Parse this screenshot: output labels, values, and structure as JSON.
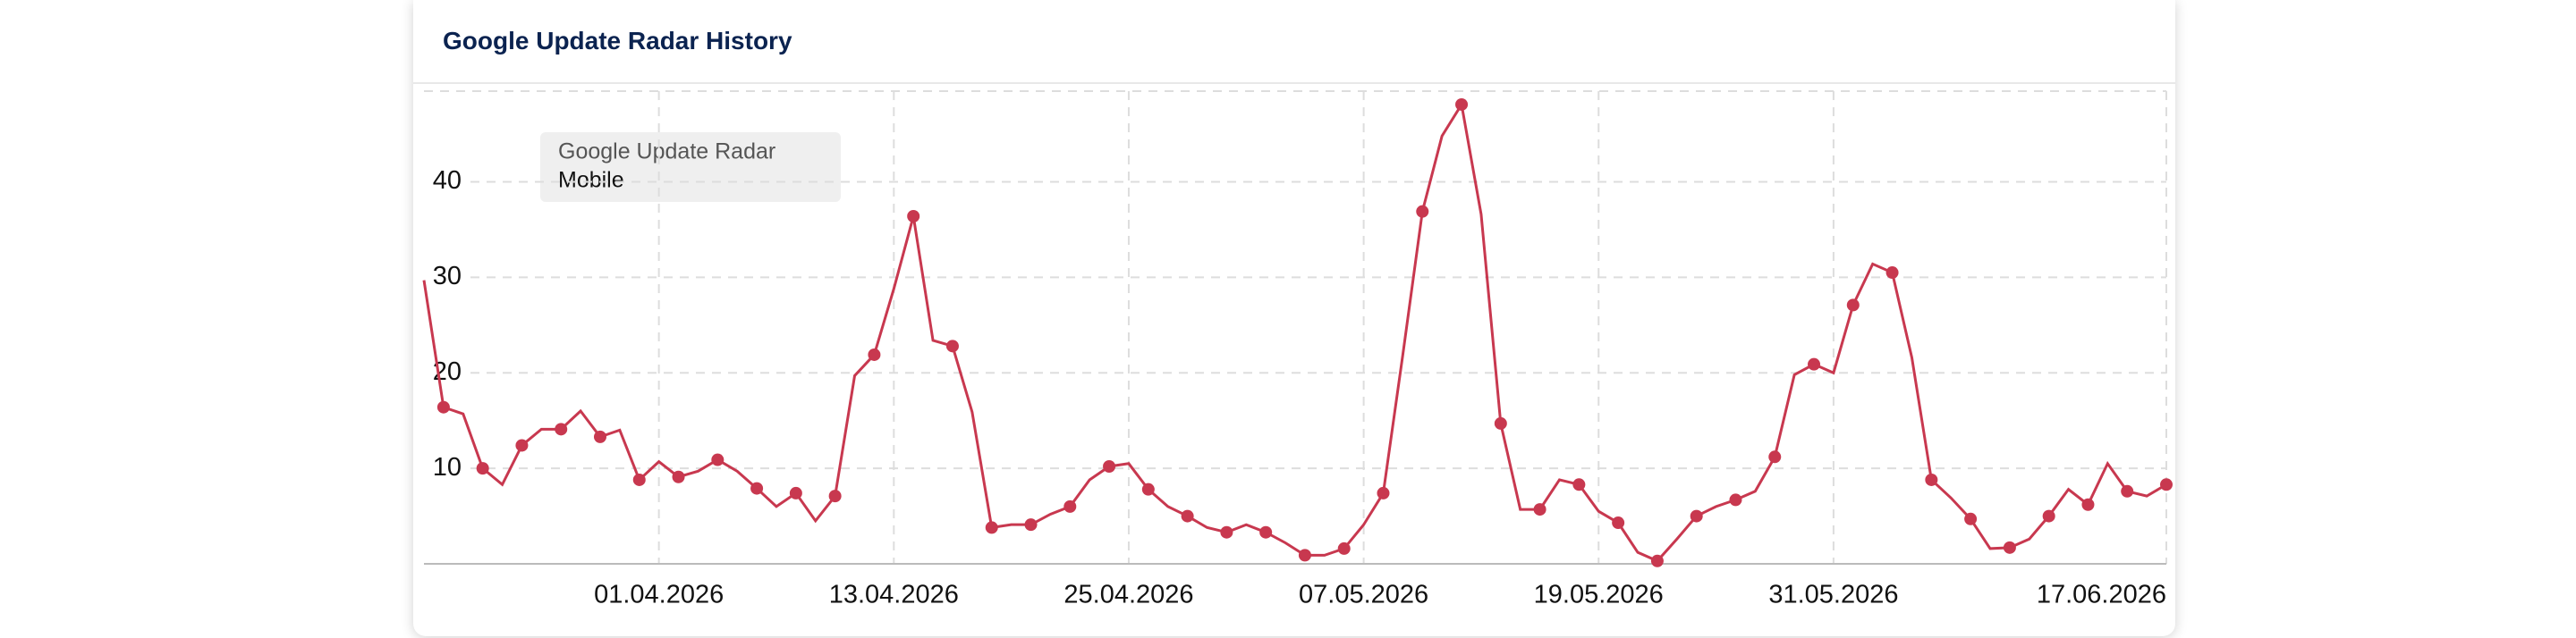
{
  "chart_data": {
    "type": "line",
    "title": "Google Update Radar History",
    "legend_title": "Google Update Radar",
    "x": [
      "2026-03-20",
      "2026-03-21",
      "2026-03-22",
      "2026-03-23",
      "2026-03-24",
      "2026-03-25",
      "2026-03-26",
      "2026-03-27",
      "2026-03-28",
      "2026-03-29",
      "2026-03-30",
      "2026-03-31",
      "2026-04-01",
      "2026-04-02",
      "2026-04-03",
      "2026-04-04",
      "2026-04-05",
      "2026-04-06",
      "2026-04-07",
      "2026-04-08",
      "2026-04-09",
      "2026-04-10",
      "2026-04-11",
      "2026-04-12",
      "2026-04-13",
      "2026-04-14",
      "2026-04-15",
      "2026-04-16",
      "2026-04-17",
      "2026-04-18",
      "2026-04-19",
      "2026-04-20",
      "2026-04-21",
      "2026-04-22",
      "2026-04-23",
      "2026-04-24",
      "2026-04-25",
      "2026-04-26",
      "2026-04-27",
      "2026-04-28",
      "2026-04-29",
      "2026-04-30",
      "2026-05-01",
      "2026-05-02",
      "2026-05-03",
      "2026-05-04",
      "2026-05-05",
      "2026-05-06",
      "2026-05-07",
      "2026-05-08",
      "2026-05-09",
      "2026-05-10",
      "2026-05-11",
      "2026-05-12",
      "2026-05-13",
      "2026-05-14",
      "2026-05-15",
      "2026-05-16",
      "2026-05-17",
      "2026-05-18",
      "2026-05-19",
      "2026-05-20",
      "2026-05-21",
      "2026-05-22",
      "2026-05-23",
      "2026-05-24",
      "2026-05-25",
      "2026-05-26",
      "2026-05-27",
      "2026-05-28",
      "2026-05-29",
      "2026-05-30",
      "2026-05-31",
      "2026-06-01",
      "2026-06-02",
      "2026-06-03",
      "2026-06-04",
      "2026-06-05",
      "2026-06-06",
      "2026-06-07",
      "2026-06-08",
      "2026-06-09",
      "2026-06-10",
      "2026-06-11",
      "2026-06-12",
      "2026-06-13",
      "2026-06-14",
      "2026-06-15",
      "2026-06-16",
      "2026-06-17"
    ],
    "series": [
      {
        "name": "Mobile",
        "color": "#c8384f",
        "values": [
          29.7,
          16.4,
          15.7,
          10,
          8.3,
          12.4,
          14.1,
          14.1,
          16,
          13.3,
          14,
          8.8,
          10.7,
          9.1,
          9.7,
          10.9,
          9.7,
          7.9,
          6,
          7.4,
          4.5,
          7.1,
          19.7,
          21.9,
          28.8,
          36.4,
          23.4,
          22.8,
          15.9,
          3.8,
          4.1,
          4.1,
          5.2,
          6,
          8.8,
          10.2,
          10.5,
          7.8,
          6,
          5,
          3.8,
          3.3,
          4.1,
          3.3,
          2.2,
          0.9,
          0.9,
          1.6,
          4.1,
          7.4,
          21.9,
          36.9,
          44.8,
          48.1,
          36.6,
          14.7,
          5.7,
          5.7,
          8.8,
          8.3,
          5.5,
          4.3,
          1.2,
          0.3,
          2.6,
          5,
          6,
          6.7,
          7.6,
          11.2,
          19.8,
          20.9,
          20,
          27.1,
          31.4,
          30.5,
          21.6,
          8.8,
          6.9,
          4.7,
          1.6,
          1.7,
          2.6,
          5,
          7.8,
          6.2,
          10.5,
          7.6,
          7.1,
          8.3
        ]
      }
    ],
    "xlim": [
      "2026-03-20",
      "2026-06-17"
    ],
    "xticks": [
      {
        "value": "2026-04-01",
        "label": "01.04.2026"
      },
      {
        "value": "2026-04-13",
        "label": "13.04.2026"
      },
      {
        "value": "2026-04-25",
        "label": "25.04.2026"
      },
      {
        "value": "2026-05-07",
        "label": "07.05.2026"
      },
      {
        "value": "2026-05-19",
        "label": "19.05.2026"
      },
      {
        "value": "2026-05-31",
        "label": "31.05.2026"
      },
      {
        "value": "2026-06-17",
        "label": "17.06.2026"
      }
    ],
    "ylim": [
      0,
      49.5
    ],
    "yticks": [
      10,
      20,
      30,
      40
    ],
    "grid": true
  }
}
